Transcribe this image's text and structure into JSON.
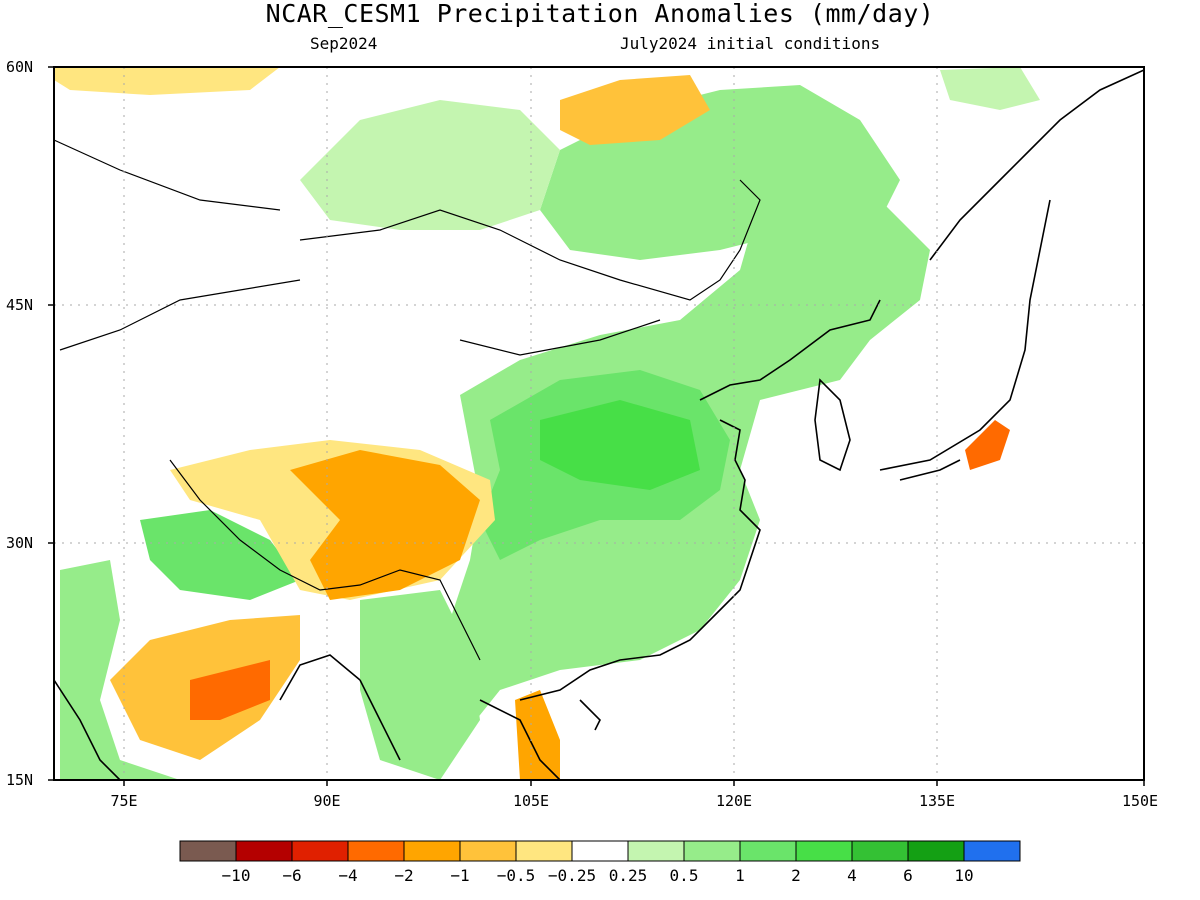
{
  "title": "NCAR_CESM1 Precipitation Anomalies (mm/day)",
  "subtitle_left": "Sep2024",
  "subtitle_right": "July2024 initial conditions",
  "map": {
    "lat_labels": [
      "60N",
      "45N",
      "30N",
      "15N"
    ],
    "lon_labels": [
      "75E",
      "90E",
      "105E",
      "120E",
      "135E",
      "150E"
    ],
    "region": "East Asia"
  },
  "colorbar": {
    "colors": [
      "#7a5a50",
      "#b40000",
      "#e02000",
      "#ff6a00",
      "#ffa500",
      "#ffc23a",
      "#ffe680",
      "#ffffff",
      "#c4f5b0",
      "#96ec8a",
      "#6ae46a",
      "#47df47",
      "#34c134",
      "#14a014",
      "#2070ee"
    ],
    "labels": [
      "−10",
      "−6",
      "−4",
      "−2",
      "−1",
      "−0.5",
      "−0.25",
      "0.25",
      "0.5",
      "1",
      "2",
      "4",
      "6",
      "10"
    ]
  }
}
